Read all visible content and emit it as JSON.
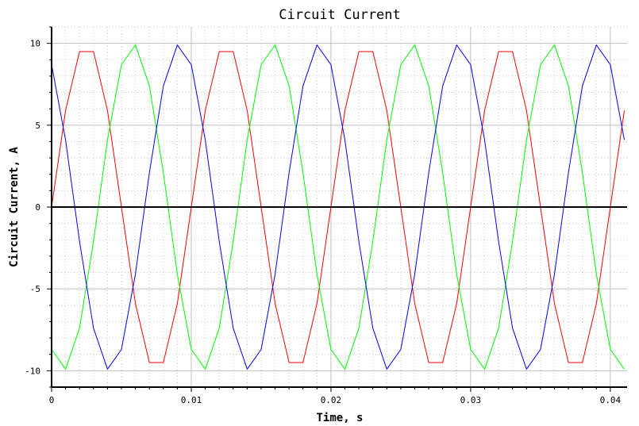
{
  "chart_data": {
    "type": "line",
    "title": "Circuit Current",
    "xlabel": "Time, s",
    "ylabel": "Circuit Current, A",
    "xlim": [
      0,
      0.0412
    ],
    "ylim": [
      -11,
      11
    ],
    "x_ticks": [
      0,
      0.01,
      0.02,
      0.03,
      0.04
    ],
    "x_tick_labels": [
      "0",
      "0.01",
      "0.02",
      "0.03",
      "0.04"
    ],
    "y_ticks": [
      -10,
      -5,
      0,
      5,
      10
    ],
    "y_tick_labels": [
      "-10",
      "-5",
      "0",
      "5",
      "10"
    ],
    "grid": true,
    "legend": "none",
    "colors": {
      "grid_major": "#c0c0c0",
      "grid_minor": "#c8c8c8",
      "zero_line": "#000000"
    },
    "series": [
      {
        "color": "#ff0000",
        "x": [
          0,
          0.001,
          0.002,
          0.003,
          0.004,
          0.005,
          0.006,
          0.007,
          0.008,
          0.009,
          0.01,
          0.011,
          0.012,
          0.013,
          0.014,
          0.015,
          0.016,
          0.017,
          0.018,
          0.019,
          0.02,
          0.021,
          0.022,
          0.023,
          0.024,
          0.025,
          0.026,
          0.027,
          0.028,
          0.029,
          0.03,
          0.031,
          0.032,
          0.033,
          0.034,
          0.035,
          0.036,
          0.037,
          0.038,
          0.039,
          0.04,
          0.041
        ],
        "y": [
          0,
          5.9,
          9.5,
          9.5,
          5.9,
          0,
          -5.9,
          -9.5,
          -9.5,
          -5.9,
          0,
          5.9,
          9.5,
          9.5,
          5.9,
          0,
          -5.9,
          -9.5,
          -9.5,
          -5.9,
          0,
          5.9,
          9.5,
          9.5,
          5.9,
          0,
          -5.9,
          -9.5,
          -9.5,
          -5.9,
          0,
          5.9,
          9.5,
          9.5,
          5.9,
          0,
          -5.9,
          -9.5,
          -9.5,
          -5.9,
          0,
          5.9
        ]
      },
      {
        "color": "#00ff00",
        "x": [
          0,
          0.001,
          0.002,
          0.003,
          0.004,
          0.005,
          0.006,
          0.007,
          0.008,
          0.009,
          0.01,
          0.011,
          0.012,
          0.013,
          0.014,
          0.015,
          0.016,
          0.017,
          0.018,
          0.019,
          0.02,
          0.021,
          0.022,
          0.023,
          0.024,
          0.025,
          0.026,
          0.027,
          0.028,
          0.029,
          0.03,
          0.031,
          0.032,
          0.033,
          0.034,
          0.035,
          0.036,
          0.037,
          0.038,
          0.039,
          0.04,
          0.041
        ],
        "y": [
          -8.7,
          -9.9,
          -7.4,
          -2.1,
          4.1,
          8.7,
          9.9,
          7.4,
          2.1,
          -4.1,
          -8.7,
          -9.9,
          -7.4,
          -2.1,
          4.1,
          8.7,
          9.9,
          7.4,
          2.1,
          -4.1,
          -8.7,
          -9.9,
          -7.4,
          -2.1,
          4.1,
          8.7,
          9.9,
          7.4,
          2.1,
          -4.1,
          -8.7,
          -9.9,
          -7.4,
          -2.1,
          4.1,
          8.7,
          9.9,
          7.4,
          2.1,
          -4.1,
          -8.7,
          -9.9
        ]
      },
      {
        "color": "#0000ff",
        "x": [
          0,
          0.001,
          0.002,
          0.003,
          0.004,
          0.005,
          0.006,
          0.007,
          0.008,
          0.009,
          0.01,
          0.011,
          0.012,
          0.013,
          0.014,
          0.015,
          0.016,
          0.017,
          0.018,
          0.019,
          0.02,
          0.021,
          0.022,
          0.023,
          0.024,
          0.025,
          0.026,
          0.027,
          0.028,
          0.029,
          0.03,
          0.031,
          0.032,
          0.033,
          0.034,
          0.035,
          0.036,
          0.037,
          0.038,
          0.039,
          0.04,
          0.041
        ],
        "y": [
          8.7,
          4.1,
          -2.1,
          -7.4,
          -9.9,
          -8.7,
          -4.1,
          2.1,
          7.4,
          9.9,
          8.7,
          4.1,
          -2.1,
          -7.4,
          -9.9,
          -8.7,
          -4.1,
          2.1,
          7.4,
          9.9,
          8.7,
          4.1,
          -2.1,
          -7.4,
          -9.9,
          -8.7,
          -4.1,
          2.1,
          7.4,
          9.9,
          8.7,
          4.1,
          -2.1,
          -7.4,
          -9.9,
          -8.7,
          -4.1,
          2.1,
          7.4,
          9.9,
          8.7,
          4.1
        ]
      }
    ]
  }
}
